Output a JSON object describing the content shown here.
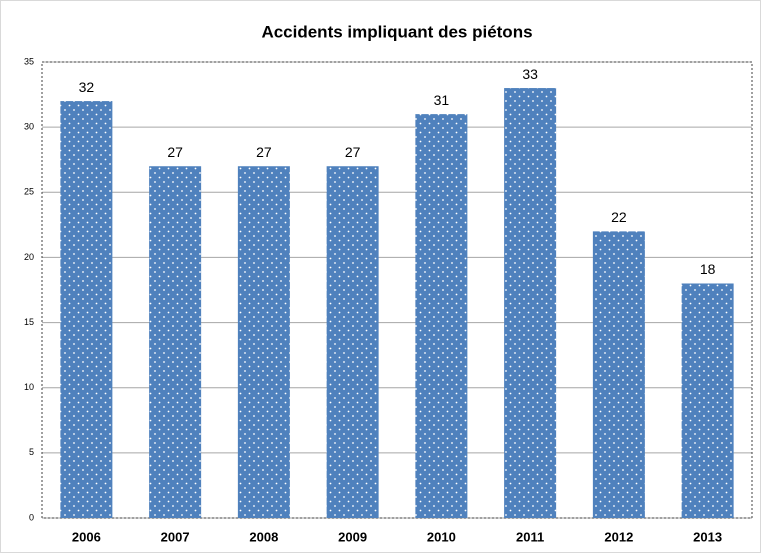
{
  "chart_data": {
    "type": "bar",
    "title": "Accidents impliquant des piétons",
    "categories": [
      "2006",
      "2007",
      "2008",
      "2009",
      "2010",
      "2011",
      "2012",
      "2013"
    ],
    "values": [
      32,
      27,
      27,
      27,
      31,
      33,
      22,
      18
    ],
    "color": "#4f81bd",
    "ylim": [
      0,
      35
    ],
    "yticks": [
      0,
      5,
      10,
      15,
      20,
      25,
      30,
      35
    ],
    "grid": true
  }
}
